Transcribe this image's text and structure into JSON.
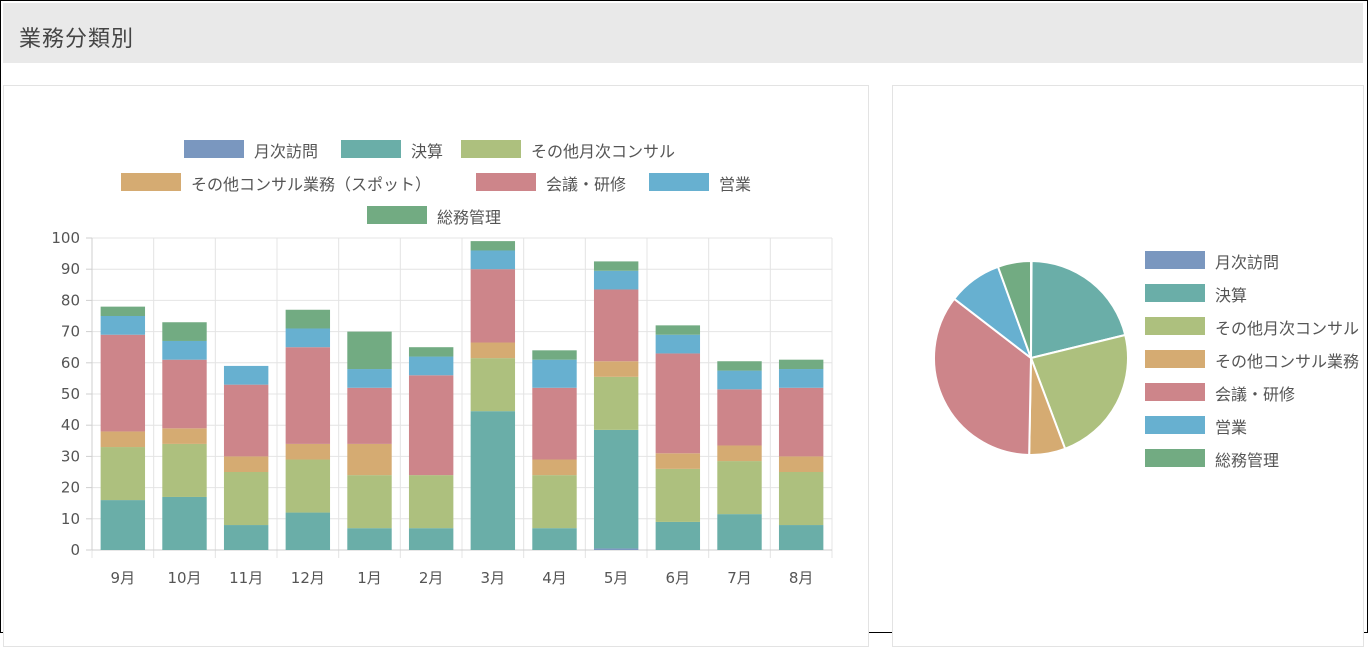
{
  "header": {
    "title": "業務分類別"
  },
  "colors": {
    "月次訪問": "#7a97bf",
    "決算": "#6aaea8",
    "その他月次コンサル": "#adc07e",
    "その他コンサル業務（スポット）": "#d5ab72",
    "会議・研修": "#cd858a",
    "営業": "#67b0d0",
    "総務管理": "#72ab82"
  },
  "chart_data": [
    {
      "type": "bar",
      "stacked": true,
      "categories": [
        "9月",
        "10月",
        "11月",
        "12月",
        "1月",
        "2月",
        "3月",
        "4月",
        "5月",
        "6月",
        "7月",
        "8月"
      ],
      "ylim": [
        0,
        100
      ],
      "yticks": [
        "0",
        "10",
        "20",
        "30",
        "40",
        "50",
        "60",
        "70",
        "80",
        "90",
        "100"
      ],
      "grid": true,
      "legend_position": "top",
      "series": [
        {
          "name": "月次訪問",
          "values": [
            0,
            0,
            0,
            0,
            0,
            0,
            0,
            0,
            0.5,
            0,
            0,
            0
          ]
        },
        {
          "name": "決算",
          "values": [
            16,
            17,
            8,
            12,
            7,
            7,
            44.5,
            7,
            38,
            9,
            11.5,
            8
          ]
        },
        {
          "name": "その他月次コンサル",
          "values": [
            17,
            17,
            17,
            17,
            17,
            17,
            17,
            17,
            17,
            17,
            17,
            17
          ]
        },
        {
          "name": "その他コンサル業務（スポット）",
          "values": [
            5,
            5,
            5,
            5,
            10,
            0,
            5,
            5,
            5,
            5,
            5,
            5
          ]
        },
        {
          "name": "会議・研修",
          "values": [
            31,
            22,
            23,
            31,
            18,
            32,
            23.5,
            23,
            23,
            32,
            18,
            22
          ]
        },
        {
          "name": "営業",
          "values": [
            6,
            6,
            6,
            6,
            6,
            6,
            6,
            9,
            6,
            6,
            6,
            6
          ]
        },
        {
          "name": "総務管理",
          "values": [
            3,
            6,
            0,
            6,
            12,
            3,
            3,
            3,
            3,
            3,
            3,
            3
          ]
        }
      ]
    },
    {
      "type": "pie",
      "legend_position": "right",
      "categories": [
        "月次訪問",
        "決算",
        "その他月次コンサル",
        "その他コンサル業務（スポット）",
        "会議・研修",
        "営業",
        "総務管理"
      ],
      "values": [
        0.1,
        21,
        23,
        6,
        35,
        9,
        5.5
      ]
    }
  ]
}
